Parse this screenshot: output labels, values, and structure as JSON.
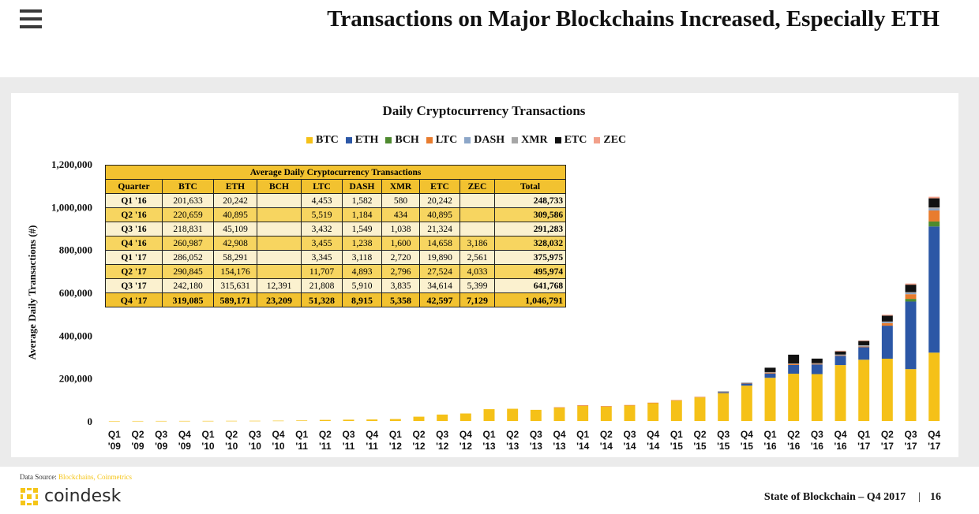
{
  "header": {
    "title": "Transactions on Major Blockchains Increased, Especially ETH"
  },
  "colors": {
    "BTC": "#f5c118",
    "ETH": "#2c57a6",
    "BCH": "#4e8a2f",
    "LTC": "#e87c2e",
    "DASH": "#8ca6c8",
    "XMR": "#a6a6a6",
    "ETC": "#111111",
    "ZEC": "#f2a08a"
  },
  "chart_data": {
    "type": "bar",
    "stacked": true,
    "title": "Daily Cryptocurrency Transactions",
    "ylabel": "Average Daily Transactions (#)",
    "xlabel": "",
    "ylim": [
      0,
      1200000
    ],
    "yticks": [
      "0",
      "200,000",
      "400,000",
      "600,000",
      "800,000",
      "1,000,000",
      "1,200,000"
    ],
    "legend": [
      "BTC",
      "ETH",
      "BCH",
      "LTC",
      "DASH",
      "XMR",
      "ETC",
      "ZEC"
    ],
    "categories": [
      [
        "Q1",
        "'09"
      ],
      [
        "Q2",
        "'09"
      ],
      [
        "Q3",
        "'09"
      ],
      [
        "Q4",
        "'09"
      ],
      [
        "Q1",
        "'10"
      ],
      [
        "Q2",
        "'10"
      ],
      [
        "Q3",
        "'10"
      ],
      [
        "Q4",
        "'10"
      ],
      [
        "Q1",
        "'11"
      ],
      [
        "Q2",
        "'11"
      ],
      [
        "Q3",
        "'11"
      ],
      [
        "Q4",
        "'11"
      ],
      [
        "Q1",
        "'12"
      ],
      [
        "Q2",
        "'12"
      ],
      [
        "Q3",
        "'12"
      ],
      [
        "Q4",
        "'12"
      ],
      [
        "Q1",
        "'13"
      ],
      [
        "Q2",
        "'13"
      ],
      [
        "Q3",
        "'13"
      ],
      [
        "Q4",
        "'13"
      ],
      [
        "Q1",
        "'14"
      ],
      [
        "Q2",
        "'14"
      ],
      [
        "Q3",
        "'14"
      ],
      [
        "Q4",
        "'14"
      ],
      [
        "Q1",
        "'15"
      ],
      [
        "Q2",
        "'15"
      ],
      [
        "Q3",
        "'15"
      ],
      [
        "Q4",
        "'15"
      ],
      [
        "Q1",
        "'16"
      ],
      [
        "Q2",
        "'16"
      ],
      [
        "Q3",
        "'16"
      ],
      [
        "Q4",
        "'16"
      ],
      [
        "Q1",
        "'17"
      ],
      [
        "Q2",
        "'17"
      ],
      [
        "Q3",
        "'17"
      ],
      [
        "Q4",
        "'17"
      ]
    ],
    "series": [
      {
        "name": "BTC",
        "values": [
          100,
          200,
          300,
          400,
          500,
          800,
          1000,
          1500,
          2500,
          5000,
          6000,
          7000,
          9000,
          20000,
          30000,
          35000,
          55000,
          57000,
          52000,
          62000,
          70000,
          67000,
          72000,
          83000,
          95000,
          110000,
          130000,
          165000,
          201633,
          220659,
          218831,
          260987,
          286052,
          290845,
          242180,
          319085
        ]
      },
      {
        "name": "ETH",
        "values": [
          0,
          0,
          0,
          0,
          0,
          0,
          0,
          0,
          0,
          0,
          0,
          0,
          0,
          0,
          0,
          0,
          0,
          0,
          0,
          0,
          0,
          0,
          0,
          0,
          0,
          0,
          5000,
          10000,
          20242,
          40895,
          45109,
          42908,
          58291,
          154176,
          315631,
          589171
        ]
      },
      {
        "name": "BCH",
        "values": [
          0,
          0,
          0,
          0,
          0,
          0,
          0,
          0,
          0,
          0,
          0,
          0,
          0,
          0,
          0,
          0,
          0,
          0,
          0,
          0,
          0,
          0,
          0,
          0,
          0,
          0,
          0,
          0,
          0,
          0,
          0,
          0,
          0,
          0,
          12391,
          23209
        ]
      },
      {
        "name": "LTC",
        "values": [
          0,
          0,
          0,
          0,
          0,
          0,
          0,
          0,
          0,
          0,
          0,
          0,
          0,
          0,
          0,
          0,
          0,
          0,
          0,
          2000,
          3000,
          2500,
          2500,
          2500,
          2500,
          2500,
          3000,
          3000,
          4453,
          5519,
          3432,
          3455,
          3345,
          11707,
          21808,
          51328
        ]
      },
      {
        "name": "DASH",
        "values": [
          0,
          0,
          0,
          0,
          0,
          0,
          0,
          0,
          0,
          0,
          0,
          0,
          0,
          0,
          0,
          0,
          0,
          0,
          0,
          0,
          0,
          0,
          0,
          0,
          0,
          0,
          500,
          1000,
          1582,
          1184,
          1549,
          1238,
          3118,
          4893,
          5910,
          8915
        ]
      },
      {
        "name": "XMR",
        "values": [
          0,
          0,
          0,
          0,
          0,
          0,
          0,
          0,
          0,
          0,
          0,
          0,
          0,
          0,
          0,
          0,
          0,
          0,
          0,
          0,
          0,
          0,
          0,
          0,
          0,
          0,
          300,
          500,
          580,
          434,
          1038,
          1600,
          2720,
          2796,
          3835,
          5358
        ]
      },
      {
        "name": "ETC",
        "values": [
          0,
          0,
          0,
          0,
          0,
          0,
          0,
          0,
          0,
          0,
          0,
          0,
          0,
          0,
          0,
          0,
          0,
          0,
          0,
          0,
          0,
          0,
          0,
          0,
          0,
          0,
          0,
          0,
          20242,
          40895,
          21324,
          14658,
          19890,
          27524,
          34614,
          42597
        ]
      },
      {
        "name": "ZEC",
        "values": [
          0,
          0,
          0,
          0,
          0,
          0,
          0,
          0,
          0,
          0,
          0,
          0,
          0,
          0,
          0,
          0,
          0,
          0,
          0,
          0,
          0,
          0,
          0,
          0,
          0,
          0,
          0,
          0,
          0,
          0,
          0,
          3186,
          2561,
          4033,
          5399,
          7129
        ]
      }
    ],
    "inset_table": {
      "title": "Average Daily Cryptocurrency Transactions",
      "columns": [
        "Quarter",
        "BTC",
        "ETH",
        "BCH",
        "LTC",
        "DASH",
        "XMR",
        "ETC",
        "ZEC",
        "Total"
      ],
      "rows": [
        [
          "Q1 '16",
          "201,633",
          "20,242",
          "",
          "4,453",
          "1,582",
          "580",
          "20,242",
          "",
          "248,733"
        ],
        [
          "Q2 '16",
          "220,659",
          "40,895",
          "",
          "5,519",
          "1,184",
          "434",
          "40,895",
          "",
          "309,586"
        ],
        [
          "Q3 '16",
          "218,831",
          "45,109",
          "",
          "3,432",
          "1,549",
          "1,038",
          "21,324",
          "",
          "291,283"
        ],
        [
          "Q4 '16",
          "260,987",
          "42,908",
          "",
          "3,455",
          "1,238",
          "1,600",
          "14,658",
          "3,186",
          "328,032"
        ],
        [
          "Q1 '17",
          "286,052",
          "58,291",
          "",
          "3,345",
          "3,118",
          "2,720",
          "19,890",
          "2,561",
          "375,975"
        ],
        [
          "Q2 '17",
          "290,845",
          "154,176",
          "",
          "11,707",
          "4,893",
          "2,796",
          "27,524",
          "4,033",
          "495,974"
        ],
        [
          "Q3 '17",
          "242,180",
          "315,631",
          "12,391",
          "21,808",
          "5,910",
          "3,835",
          "34,614",
          "5,399",
          "641,768"
        ],
        [
          "Q4 '17",
          "319,085",
          "589,171",
          "23,209",
          "51,328",
          "8,915",
          "5,358",
          "42,597",
          "7,129",
          "1,046,791"
        ]
      ]
    }
  },
  "source": {
    "label": "Data Source: ",
    "link1": "Blockchains",
    "separator": ", ",
    "link2": "Coinmetrics"
  },
  "footer": {
    "brand": "coindesk",
    "report": "State of Blockchain – Q4 2017",
    "divider": "|",
    "page": "16"
  }
}
